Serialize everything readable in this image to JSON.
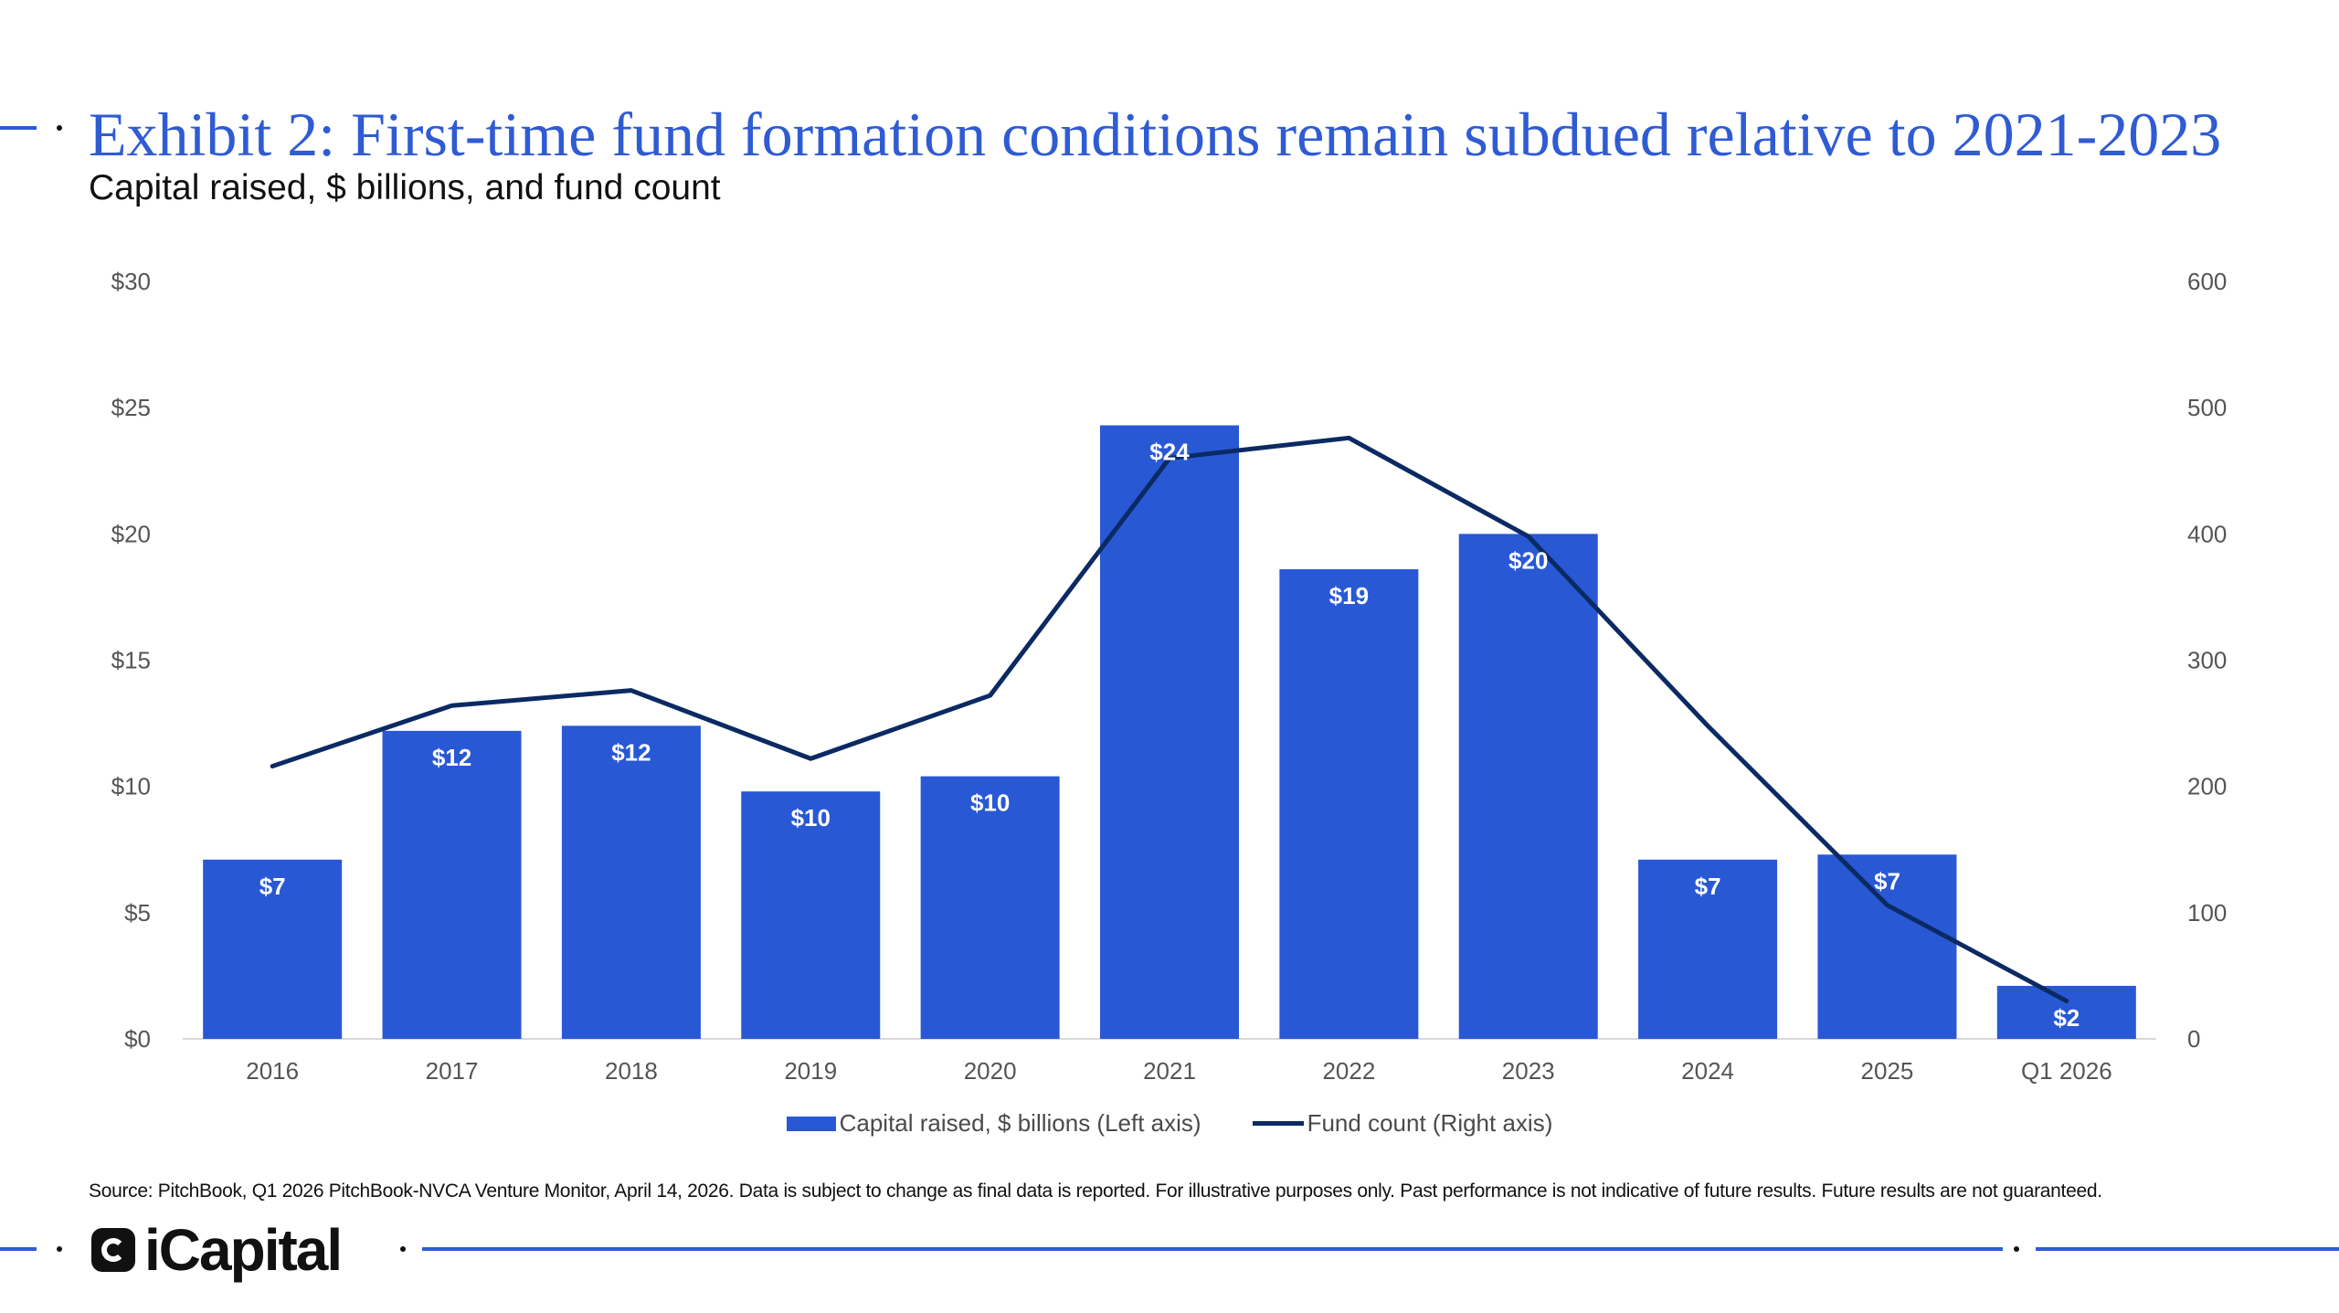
{
  "header": {
    "title": "Exhibit 2: First-time fund formation conditions remain subdued relative to 2021-2023",
    "subtitle": "Capital raised, $ billions, and fund count"
  },
  "chart_data": {
    "type": "bar",
    "categories": [
      "2016",
      "2017",
      "2018",
      "2019",
      "2020",
      "2021",
      "2022",
      "2023",
      "2024",
      "2025",
      "Q1 2026"
    ],
    "series": [
      {
        "name": "Capital raised, $ billions (Left axis)",
        "type": "bar",
        "axis": "left",
        "values": [
          7.1,
          12.2,
          12.4,
          9.8,
          10.4,
          24.3,
          18.6,
          20.0,
          7.1,
          7.3,
          2.1
        ],
        "labels": [
          "$7",
          "$12",
          "$12",
          "$10",
          "$10",
          "$24",
          "$19",
          "$20",
          "$7",
          "$7",
          "$2"
        ]
      },
      {
        "name": "Fund count (Right axis)",
        "type": "line",
        "axis": "right",
        "values": [
          216,
          264,
          276,
          222,
          272,
          460,
          476,
          398,
          248,
          106,
          30
        ]
      }
    ],
    "ylim_left": [
      0,
      30
    ],
    "ylim_right": [
      0,
      600
    ],
    "left_ticks": [
      "$0",
      "$5",
      "$10",
      "$15",
      "$20",
      "$25",
      "$30"
    ],
    "right_ticks": [
      "0",
      "100",
      "200",
      "300",
      "400",
      "500",
      "600"
    ],
    "grid": false,
    "legend_position": "bottom-center",
    "colors": {
      "bar": "#2858d4",
      "line": "#0b2a63"
    }
  },
  "legend": {
    "bar_label": "Capital raised, $ billions (Left axis)",
    "line_label": "Fund count (Right axis)"
  },
  "footer": {
    "source": "Source: PitchBook, Q1 2026 PitchBook-NVCA Venture Monitor, April 14, 2026. Data is subject to change as final data is reported. For illustrative purposes only. Past performance is not indicative of future results. Future results are not guaranteed.",
    "brand": "iCapital"
  }
}
